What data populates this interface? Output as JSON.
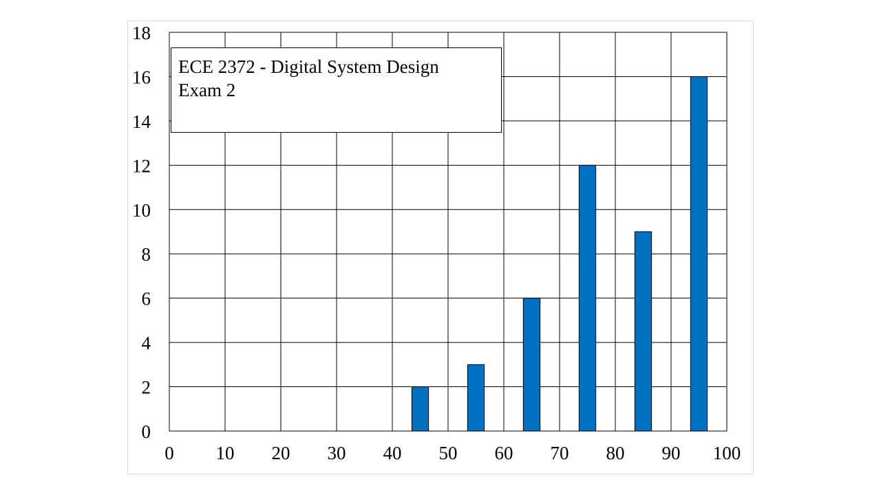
{
  "chart_data": {
    "type": "bar",
    "x": [
      45,
      55,
      65,
      75,
      85,
      95
    ],
    "values": [
      2,
      3,
      6,
      12,
      9,
      16
    ],
    "xlim": [
      0,
      100
    ],
    "ylim": [
      0,
      18
    ],
    "x_ticks": [
      "0",
      "10",
      "20",
      "30",
      "40",
      "50",
      "60",
      "70",
      "80",
      "90",
      "100"
    ],
    "y_ticks": [
      "0",
      "2",
      "4",
      "6",
      "8",
      "10",
      "12",
      "14",
      "16",
      "18"
    ],
    "grid": true,
    "title": "",
    "xlabel": "",
    "ylabel": "",
    "bar_color": "#0070C0",
    "annotation": {
      "line1": "ECE 2372 - Digital System Design",
      "line2": "Exam 2"
    }
  }
}
